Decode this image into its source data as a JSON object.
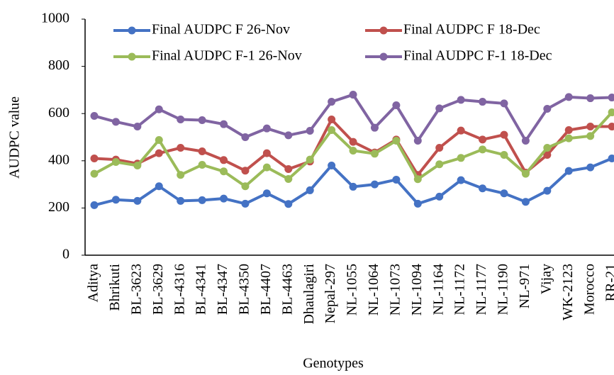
{
  "chart_data": {
    "type": "line",
    "x_label": "Genotypes",
    "y_label": "AUDPC value",
    "categories": [
      "Aditya",
      "Bhrikuti",
      "BL-3623",
      "BL-3629",
      "BL-4316",
      "BL-4341",
      "BL-4347",
      "BL-4350",
      "BL-4407",
      "BL-4463",
      "Dhaulagiri",
      "Nepal-297",
      "NL-1055",
      "NL-1064",
      "NL-1073",
      "NL-1094",
      "NL-1164",
      "NL-1172",
      "NL-1177",
      "NL-1190",
      "NL-971",
      "Vijay",
      "WK-2123",
      "Morocco",
      "RR-21"
    ],
    "series": [
      {
        "name": "Final AUDPC F 26-Nov",
        "color": "#4472c4",
        "values": [
          212,
          235,
          230,
          292,
          230,
          233,
          240,
          218,
          262,
          217,
          275,
          380,
          290,
          300,
          320,
          218,
          248,
          318,
          283,
          262,
          226,
          273,
          357,
          372,
          410
        ]
      },
      {
        "name": "Final AUDPC F 18-Dec",
        "color": "#c0504d",
        "values": [
          410,
          405,
          388,
          432,
          455,
          440,
          403,
          358,
          432,
          365,
          397,
          575,
          480,
          435,
          490,
          340,
          455,
          528,
          490,
          510,
          350,
          425,
          530,
          545,
          545
        ]
      },
      {
        "name": "Final AUDPC F-1 26-Nov",
        "color": "#9bbb59",
        "values": [
          345,
          395,
          380,
          488,
          340,
          383,
          355,
          292,
          372,
          323,
          405,
          530,
          443,
          430,
          485,
          322,
          385,
          412,
          448,
          425,
          345,
          455,
          495,
          505,
          605
        ]
      },
      {
        "name": "Final AUDPC F-1 18-Dec",
        "color": "#8064a2",
        "values": [
          590,
          565,
          545,
          618,
          575,
          572,
          555,
          500,
          537,
          508,
          527,
          650,
          680,
          540,
          635,
          485,
          622,
          658,
          650,
          643,
          485,
          620,
          670,
          665,
          668
        ]
      }
    ],
    "ylim": [
      0,
      1000
    ],
    "yticks": [
      0,
      200,
      400,
      600,
      800,
      1000
    ],
    "grid": false,
    "legend": "top"
  }
}
